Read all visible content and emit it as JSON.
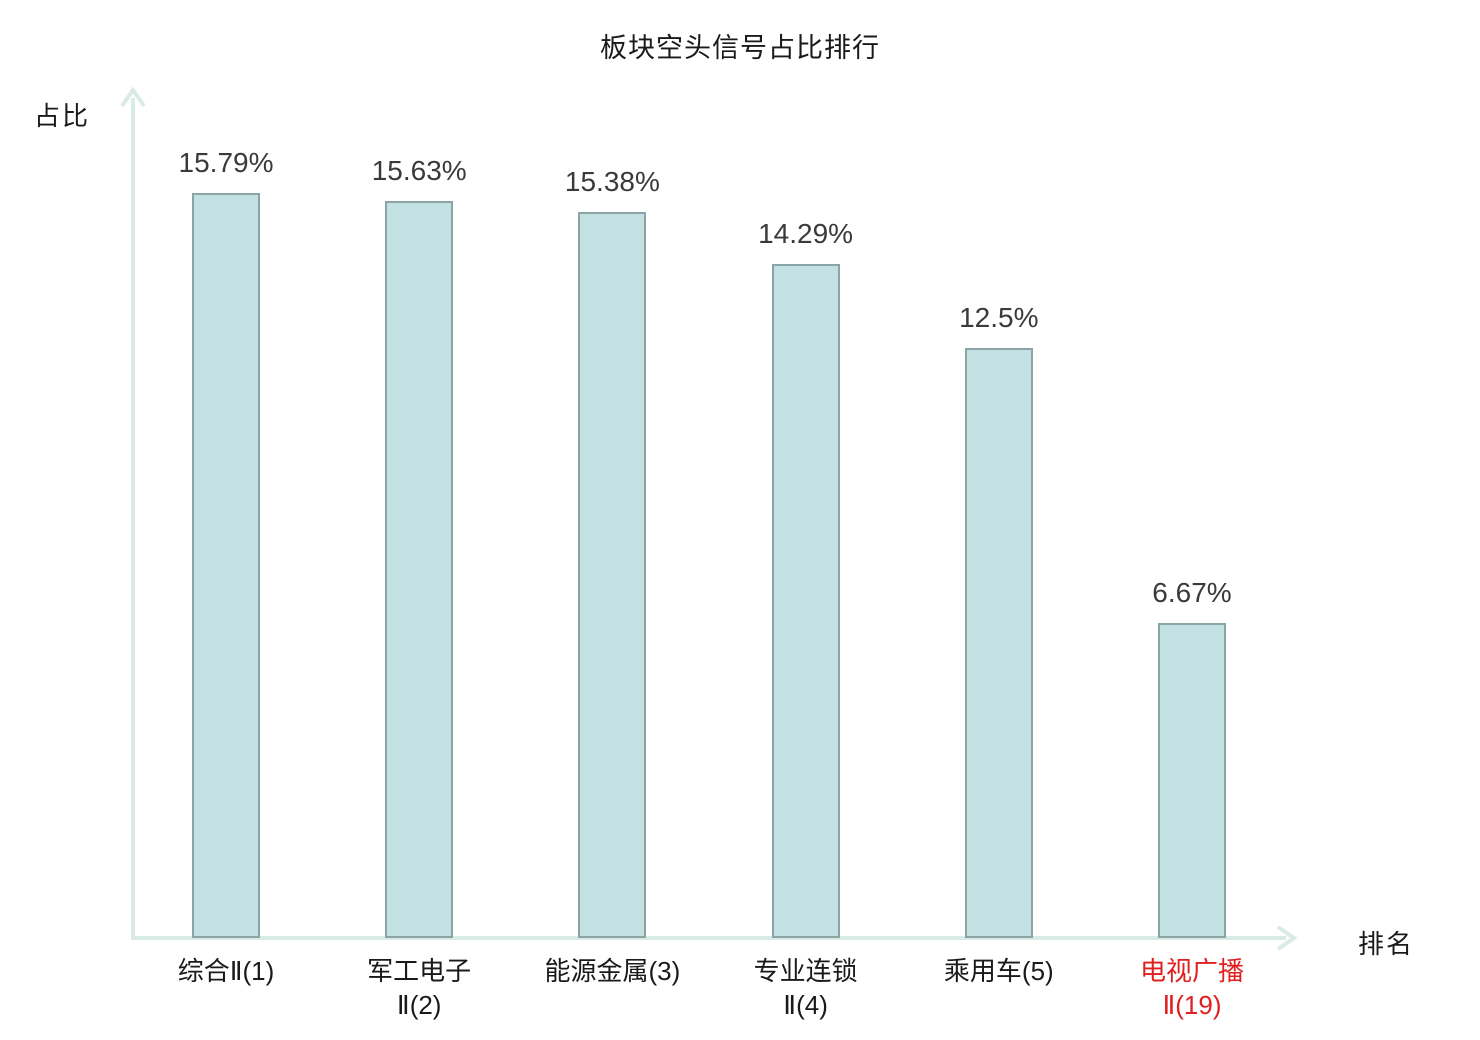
{
  "chart_data": {
    "type": "bar",
    "title": "板块空头信号占比排行",
    "xlabel": "排名",
    "ylabel": "占比",
    "categories": [
      "综合Ⅱ(1)",
      "军工电子Ⅱ(2)",
      "能源金属(3)",
      "专业连锁Ⅱ(4)",
      "乘用车(5)",
      "电视广播Ⅱ(19)"
    ],
    "category_lines": [
      [
        "综合Ⅱ(1)"
      ],
      [
        "军工电子",
        "Ⅱ(2)"
      ],
      [
        "能源金属(3)"
      ],
      [
        "专业连锁",
        "Ⅱ(4)"
      ],
      [
        "乘用车(5)"
      ],
      [
        "电视广播",
        "Ⅱ(19)"
      ]
    ],
    "values": [
      15.79,
      15.63,
      15.38,
      14.29,
      12.5,
      6.67
    ],
    "value_labels": [
      "15.79%",
      "15.63%",
      "15.38%",
      "14.29%",
      "12.5%",
      "6.67%"
    ],
    "highlight_index": 5,
    "ylim": [
      0,
      18
    ],
    "grid": false,
    "legend": null
  },
  "colors": {
    "bar_fill": "#c3e1e3",
    "bar_border": "#8ba4a6",
    "axis": "#d8ebe5",
    "value_label": "#3a3a3a",
    "text": "#1a1a1a",
    "highlight": "#e02020"
  }
}
